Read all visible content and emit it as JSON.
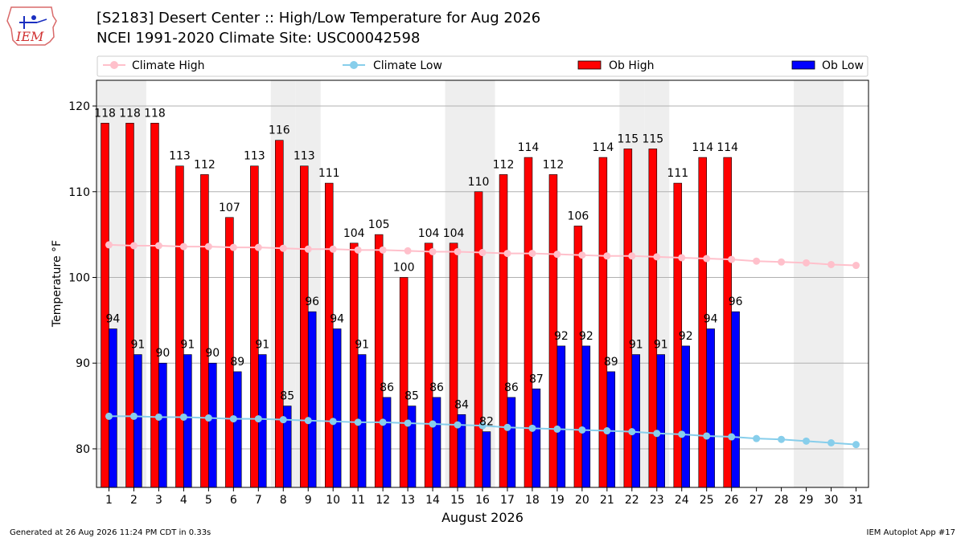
{
  "header": {
    "title_line1": "[S2183] Desert Center :: High/Low Temperature for Aug 2026",
    "title_line2": "NCEI 1991-2020 Climate Site: USC00042598",
    "logo_text": "IEM"
  },
  "footer": {
    "generated": "Generated at 26 Aug 2026 11:24 PM CDT in 0.33s",
    "app": "IEM Autoplot App #17"
  },
  "colors": {
    "ob_high": "#ff0000",
    "ob_low": "#0000ff",
    "climate_high": "#ffc0cb",
    "climate_low": "#87ceeb",
    "weekend_band": "#eeeeee",
    "grid": "#b0b0b0"
  },
  "chart_data": {
    "type": "bar",
    "xlabel": "August 2026",
    "ylabel": "Temperature °F",
    "ylim": [
      75.5,
      123
    ],
    "yticks": [
      80,
      90,
      100,
      110,
      120
    ],
    "grid": true,
    "legend_position": "top",
    "x": [
      1,
      2,
      3,
      4,
      5,
      6,
      7,
      8,
      9,
      10,
      11,
      12,
      13,
      14,
      15,
      16,
      17,
      18,
      19,
      20,
      21,
      22,
      23,
      24,
      25,
      26,
      27,
      28,
      29,
      30,
      31
    ],
    "shaded_days": [
      1,
      2,
      8,
      9,
      15,
      16,
      22,
      23,
      29,
      30
    ],
    "series": [
      {
        "name": "Climate High",
        "kind": "line",
        "values": [
          103.8,
          103.7,
          103.7,
          103.6,
          103.6,
          103.5,
          103.5,
          103.4,
          103.3,
          103.3,
          103.2,
          103.2,
          103.1,
          103.0,
          103.0,
          102.9,
          102.8,
          102.8,
          102.7,
          102.6,
          102.5,
          102.5,
          102.4,
          102.3,
          102.2,
          102.1,
          101.9,
          101.8,
          101.7,
          101.5,
          101.4
        ]
      },
      {
        "name": "Climate Low",
        "kind": "line",
        "values": [
          83.8,
          83.8,
          83.7,
          83.7,
          83.6,
          83.5,
          83.5,
          83.4,
          83.3,
          83.2,
          83.1,
          83.1,
          83.0,
          82.9,
          82.8,
          82.7,
          82.5,
          82.4,
          82.3,
          82.2,
          82.1,
          82.0,
          81.8,
          81.7,
          81.5,
          81.4,
          81.2,
          81.1,
          80.9,
          80.7,
          80.5
        ]
      },
      {
        "name": "Ob High",
        "kind": "bar",
        "values": [
          118,
          118,
          118,
          113,
          112,
          107,
          113,
          116,
          113,
          111,
          104,
          105,
          100,
          104,
          104,
          110,
          112,
          114,
          112,
          106,
          114,
          115,
          115,
          111,
          114,
          114,
          null,
          null,
          null,
          null,
          null
        ]
      },
      {
        "name": "Ob Low",
        "kind": "bar",
        "values": [
          94,
          91,
          90,
          91,
          90,
          89,
          91,
          85,
          96,
          94,
          91,
          86,
          85,
          86,
          84,
          82,
          86,
          87,
          92,
          92,
          89,
          91,
          91,
          92,
          94,
          96,
          null,
          null,
          null,
          null,
          null
        ]
      }
    ]
  }
}
